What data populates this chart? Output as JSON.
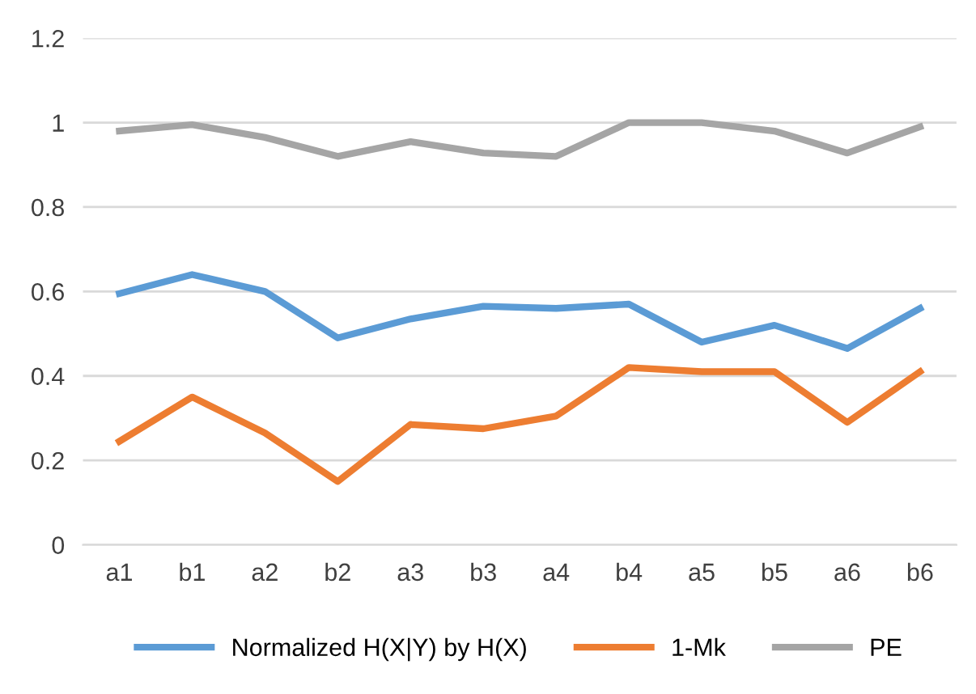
{
  "chart_data": {
    "type": "line",
    "categories": [
      "a1",
      "b1",
      "a2",
      "b2",
      "a3",
      "b3",
      "a4",
      "b4",
      "a5",
      "b5",
      "a6",
      "b6"
    ],
    "series": [
      {
        "name": "Normalized H(X|Y) by H(X)",
        "color": "#5b9bd5",
        "values": [
          0.595,
          0.64,
          0.6,
          0.49,
          0.535,
          0.565,
          0.56,
          0.57,
          0.48,
          0.52,
          0.465,
          0.56
        ]
      },
      {
        "name": "1-Mk",
        "color": "#ed7d31",
        "values": [
          0.245,
          0.35,
          0.265,
          0.15,
          0.285,
          0.275,
          0.305,
          0.42,
          0.41,
          0.41,
          0.29,
          0.41
        ]
      },
      {
        "name": "PE",
        "color": "#a5a5a5",
        "values": [
          0.98,
          0.995,
          0.965,
          0.92,
          0.955,
          0.928,
          0.92,
          1.0,
          1.0,
          0.98,
          0.928,
          0.99
        ]
      }
    ],
    "ylim": [
      0,
      1.2
    ],
    "yticks": [
      0,
      {
        "value": 0.2,
        "label": "0.2"
      },
      {
        "value": 0.4,
        "label": "0.4"
      },
      {
        "value": 0.6,
        "label": "0.6"
      },
      {
        "value": 0.8,
        "label": "0.8"
      },
      1,
      {
        "value": 1.2,
        "label": "1.2"
      }
    ],
    "grid": "y",
    "legend": "bottom",
    "marker": "none",
    "line_style": "solid"
  }
}
